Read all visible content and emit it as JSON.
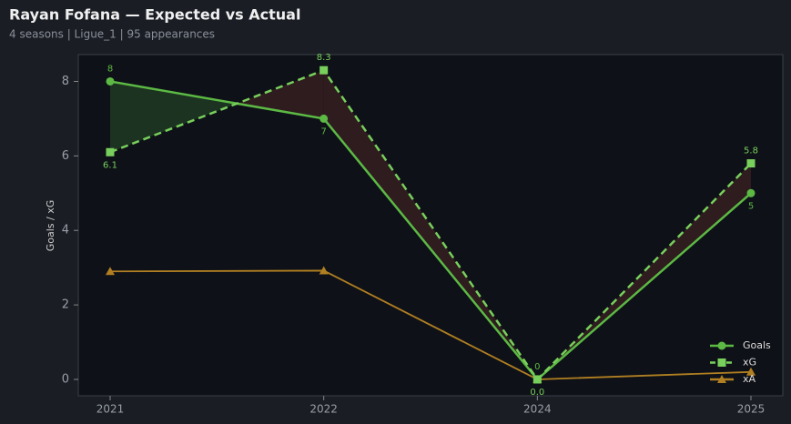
{
  "chart_data": {
    "type": "line",
    "title": "Rayan Fofana — Expected vs Actual",
    "subtitle": "4 seasons | Ligue_1 | 95 appearances",
    "y_label": "Goals / xG",
    "categories": [
      "2021",
      "2022",
      "2024",
      "2025"
    ],
    "series": [
      {
        "name": "Goals",
        "color": "#5cb944",
        "values": [
          8,
          7,
          0,
          5
        ],
        "value_labels": [
          "8",
          "7",
          "0",
          "5"
        ],
        "dash": false,
        "marker": "circle"
      },
      {
        "name": "xG",
        "color": "#78cf5c",
        "values": [
          6.1,
          8.3,
          0.0,
          5.8
        ],
        "value_labels": [
          "6.1",
          "8.3",
          "0.0",
          "5.8"
        ],
        "dash": true,
        "marker": "square"
      },
      {
        "name": "xA",
        "color": "#b07f22",
        "values": [
          2.9,
          2.92,
          0,
          0.2
        ],
        "dash": false,
        "marker": "triangle"
      }
    ],
    "ylim": [
      -0.44,
      8.72
    ],
    "yticks": [
      0,
      2,
      4,
      6,
      8
    ],
    "legend": "lower right"
  }
}
